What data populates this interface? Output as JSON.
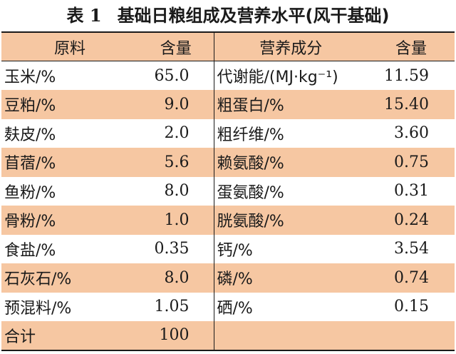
{
  "title": {
    "label": "表 1",
    "text": "基础日粮组成及营养水平(风干基础)"
  },
  "headers": {
    "ingredient": "原料",
    "content": "含量",
    "nutrient": "营养成分",
    "level": "含量"
  },
  "rows": [
    {
      "ingredient": "玉米/%",
      "content": "65.0",
      "nutrient": "代谢能/(MJ·kg⁻¹)",
      "level": "11.59",
      "shaded": false
    },
    {
      "ingredient": "豆粕/%",
      "content": "9.0",
      "nutrient": "粗蛋白/%",
      "level": "15.40",
      "shaded": true
    },
    {
      "ingredient": "麸皮/%",
      "content": "2.0",
      "nutrient": "粗纤维/%",
      "level": "3.60",
      "shaded": false
    },
    {
      "ingredient": "苜蓿/%",
      "content": "5.6",
      "nutrient": "赖氨酸/%",
      "level": "0.75",
      "shaded": true
    },
    {
      "ingredient": "鱼粉/%",
      "content": "8.0",
      "nutrient": "蛋氨酸/%",
      "level": "0.31",
      "shaded": false
    },
    {
      "ingredient": "骨粉/%",
      "content": "1.0",
      "nutrient": "胱氨酸/%",
      "level": "0.24",
      "shaded": true
    },
    {
      "ingredient": "食盐/%",
      "content": "0.35",
      "nutrient": "钙/%",
      "level": "3.54",
      "shaded": false
    },
    {
      "ingredient": "石灰石/%",
      "content": "8.0",
      "nutrient": "磷/%",
      "level": "0.74",
      "shaded": true
    },
    {
      "ingredient": "预混料/%",
      "content": "1.05",
      "nutrient": "硒/%",
      "level": "0.15",
      "shaded": false
    },
    {
      "ingredient": "合计",
      "content": "100",
      "nutrient": "",
      "level": "",
      "shaded": true
    }
  ],
  "colors": {
    "shade": "#f6c7a2",
    "rule": "#1a1a1a"
  }
}
